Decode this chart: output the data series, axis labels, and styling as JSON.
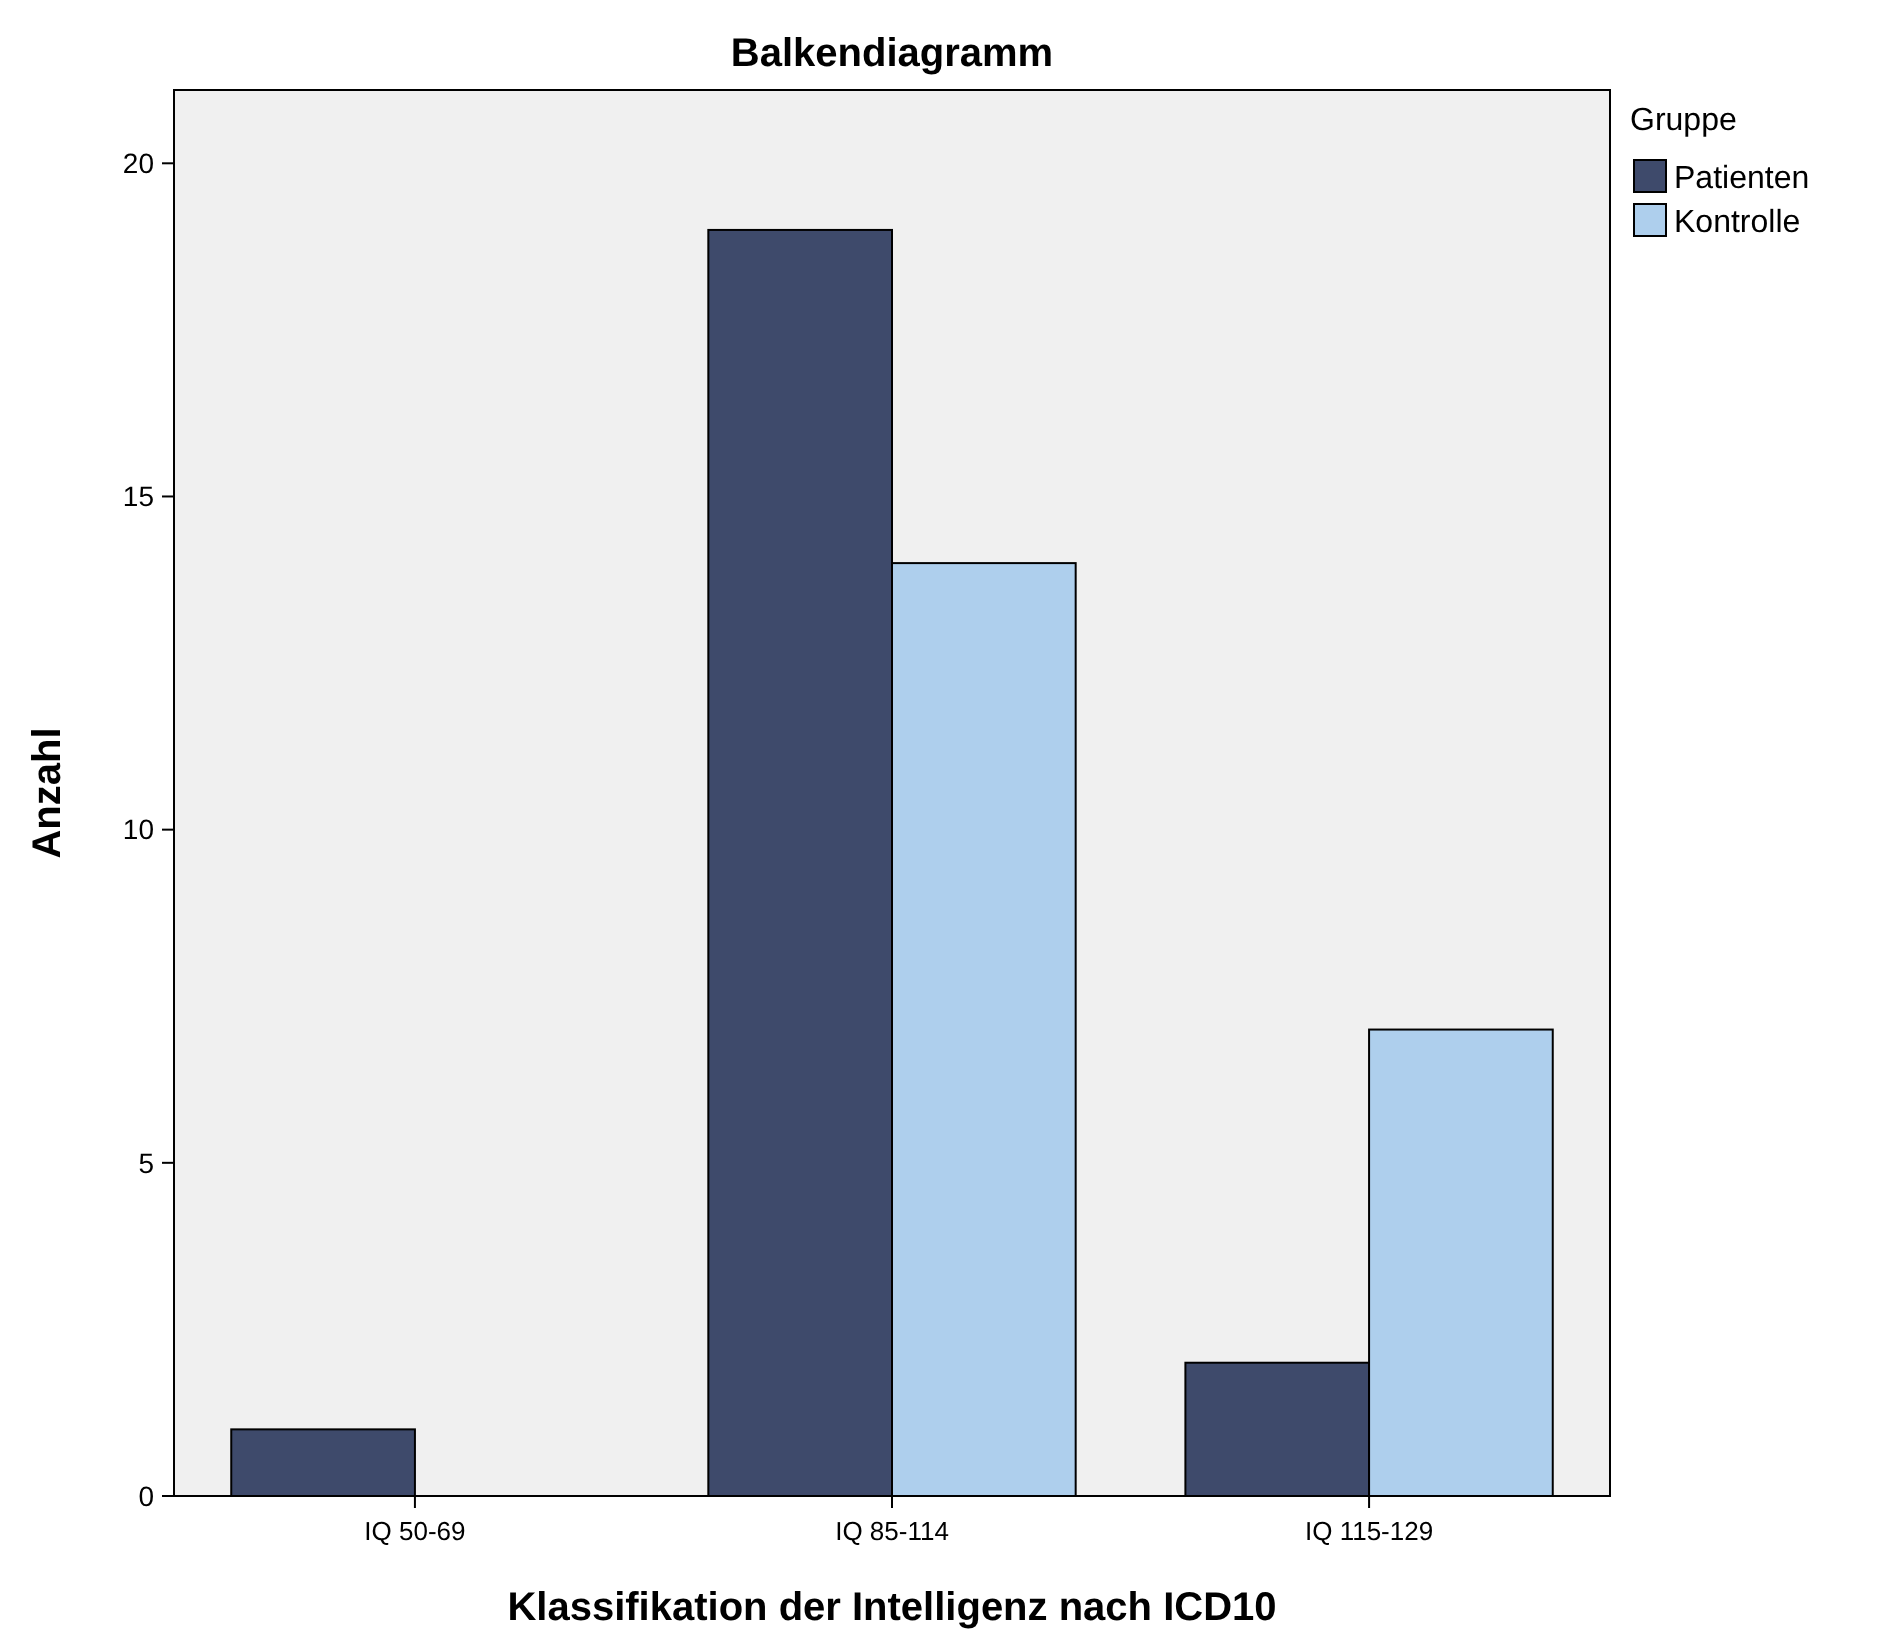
{
  "chart_data": {
    "type": "bar",
    "title": "Balkendiagramm",
    "xlabel": "Klassifikation der Intelligenz nach ICD10",
    "ylabel": "Anzahl",
    "legend_title": "Gruppe",
    "legend": "right",
    "grid": false,
    "categories": [
      "IQ 50-69",
      "IQ 85-114",
      "IQ 115-129"
    ],
    "series": [
      {
        "name": "Patienten",
        "color": "#3e4a6b",
        "values": [
          1,
          19,
          2
        ]
      },
      {
        "name": "Kontrolle",
        "color": "#aecfed",
        "values": [
          0,
          14,
          7
        ]
      }
    ],
    "ylim": [
      0,
      21.1
    ],
    "yticks": [
      0,
      5,
      10,
      15,
      20
    ]
  }
}
